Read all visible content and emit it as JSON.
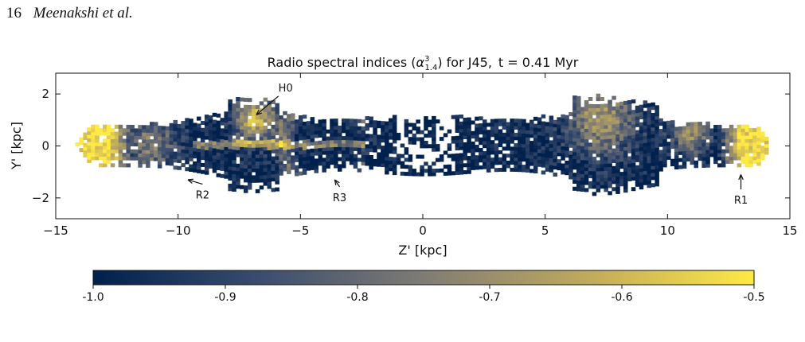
{
  "running_head": {
    "page_number": "16",
    "authors": "Meenakshi et al."
  },
  "chart_data": {
    "type": "heatmap",
    "title_prefix": "Radio spectral indices (",
    "title_symbol": "α",
    "title_sub": "1.4",
    "title_sup": "3",
    "title_suffix": ") for J45,",
    "title_time": "t = 0.41 Myr",
    "xlabel": "Z' [kpc]",
    "ylabel": "Y' [kpc]",
    "xlim": [
      -15,
      15
    ],
    "ylim": [
      -2.8,
      2.8
    ],
    "xticks": [
      -15,
      -10,
      -5,
      0,
      5,
      10,
      15
    ],
    "xtick_labels": [
      "−15",
      "−10",
      "−5",
      "0",
      "5",
      "10",
      "15"
    ],
    "yticks": [
      2,
      0,
      -2
    ],
    "ytick_labels": [
      "2",
      "0",
      "−2"
    ],
    "colorbar": {
      "range": [
        -1.0,
        -0.5
      ],
      "ticks": [
        -1.0,
        -0.9,
        -0.8,
        -0.7,
        -0.6,
        -0.5
      ],
      "tick_labels": [
        "-1.0",
        "-0.9",
        "-0.8",
        "-0.7",
        "-0.6",
        "-0.5"
      ],
      "colormap": [
        "#00204d",
        "#3a4c6e",
        "#7f7c74",
        "#c0aa5d",
        "#ffe945"
      ]
    },
    "annotations": [
      {
        "label": "H0",
        "z": -6.8,
        "y": 1.2
      },
      {
        "label": "R2",
        "z": -9.6,
        "y": -1.3
      },
      {
        "label": "R3",
        "z": -3.6,
        "y": -1.3
      },
      {
        "label": "R1",
        "z": 13.0,
        "y": -1.1
      }
    ]
  }
}
